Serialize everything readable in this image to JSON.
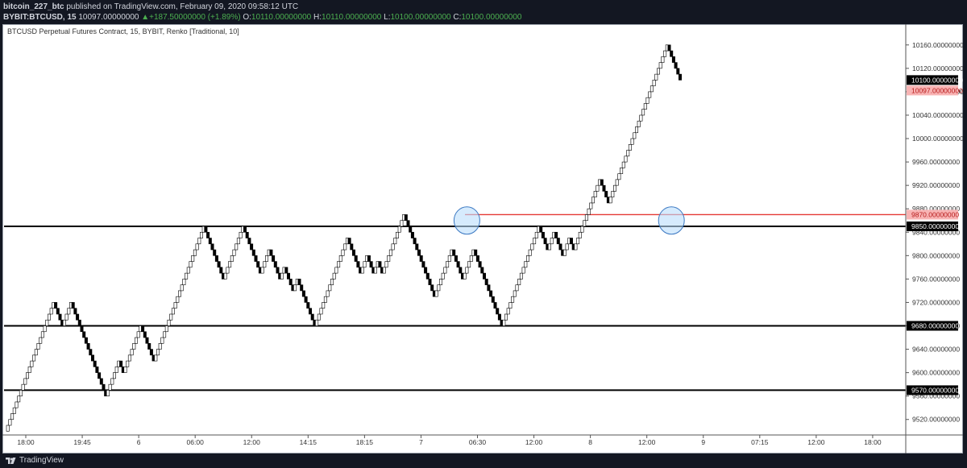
{
  "header": {
    "author": "bitcoin_227_btc",
    "published_text": "published on TradingView.com, February 09, 2020 09:58:12 UTC",
    "symbol": "BYBIT:BTCUSD, 15",
    "last_value": "10097.00000000",
    "change_icon": "triangle-up-icon",
    "change_text": "+187.50000000 (+1.89%)",
    "o_label": "O:",
    "o_value": "10110.00000000",
    "h_label": "H:",
    "h_value": "10110.00000000",
    "l_label": "L:",
    "l_value": "10100.00000000",
    "c_label": "C:",
    "c_value": "10100.00000000"
  },
  "footer": {
    "brand": "TradingView",
    "logo_icon": "tradingview-logo-icon"
  },
  "colors": {
    "background": "#ffffff",
    "dark": "#131722",
    "up_brick": "#ffffff",
    "down_brick": "#000000",
    "level_line": "#000000",
    "resistance_line": "#e53935",
    "highlight_circle": "#bbdefb",
    "price_box": "#000000",
    "current_price_box": "#f8b4b4"
  },
  "chart_data": {
    "type": "renko",
    "title": "BTCUSD Perpetual Futures Contract, 15, BYBIT, Renko [Traditional, 10]",
    "brick_size": 10,
    "ylim": [
      9500,
      10180
    ],
    "y_ticks": [
      9520,
      9560,
      9600,
      9640,
      9680,
      9720,
      9760,
      9800,
      9840,
      9880,
      9920,
      9960,
      10000,
      10040,
      10080,
      10120,
      10160
    ],
    "y_tick_format": "00000000",
    "x_ticks": [
      "18:00",
      "19:45",
      "6",
      "06:00",
      "12:00",
      "14:15",
      "18:15",
      "7",
      "06:30",
      "12:00",
      "8",
      "12:00",
      "9",
      "07:15",
      "12:00",
      "18:00"
    ],
    "horizontal_levels": [
      {
        "price": 9850,
        "label": "9850.00000000",
        "color": "#000000"
      },
      {
        "price": 9680,
        "label": "9680.00000000",
        "color": "#000000"
      },
      {
        "price": 9570,
        "label": "9570.00000000",
        "color": "#000000"
      },
      {
        "price": 9870,
        "label": "9870.00000000",
        "color": "#e53935"
      }
    ],
    "price_labels": [
      {
        "price": 10100,
        "label": "10100.00000000",
        "style": "dark"
      },
      {
        "price": 10097,
        "label": "10097.00000000",
        "style": "current"
      }
    ],
    "highlight_circles": [
      {
        "brick_index": 211,
        "price": 9860
      },
      {
        "brick_index": 305,
        "price": 9860
      }
    ],
    "start_price": 9500,
    "swings": [
      9720,
      9680,
      9720,
      9560,
      9620,
      9600,
      9680,
      9620,
      9850,
      9760,
      9850,
      9770,
      9810,
      9760,
      9780,
      9740,
      9760,
      9680,
      9830,
      9770,
      9800,
      9770,
      9790,
      9770,
      9870,
      9730,
      9810,
      9760,
      9810,
      9680,
      9850,
      9810,
      9840,
      9800,
      9830,
      9810,
      9930,
      9890,
      10160,
      10100
    ]
  }
}
